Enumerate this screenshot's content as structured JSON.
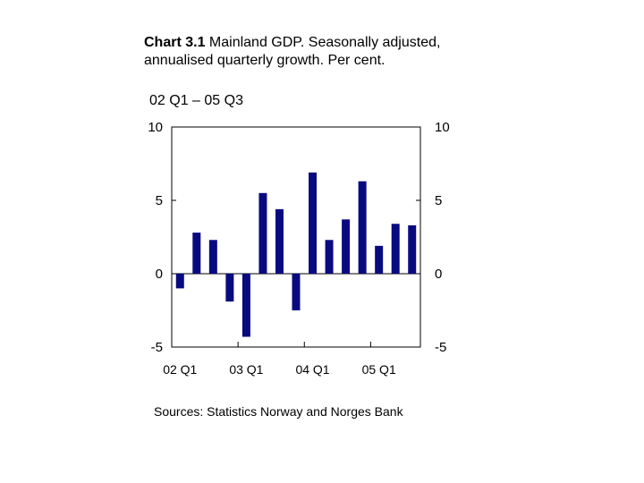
{
  "chart_data": {
    "type": "bar",
    "title_bold": "Chart 3.1",
    "title_rest": " Mainland GDP. Seasonally adjusted, annualised quarterly growth. Per cent.",
    "subtitle": "02 Q1 – 05 Q3",
    "source": "Sources: Statistics Norway and Norges Bank",
    "ylim": [
      -5,
      10
    ],
    "yticks": [
      "10",
      "5",
      "0",
      "-5"
    ],
    "ytick_values": [
      10,
      5,
      0,
      -5
    ],
    "xtick_labels": [
      "02 Q1",
      "03 Q1",
      "04 Q1",
      "05 Q1"
    ],
    "xtick_indices": [
      0,
      4,
      8,
      12
    ],
    "categories": [
      "02 Q1",
      "02 Q2",
      "02 Q3",
      "02 Q4",
      "03 Q1",
      "03 Q2",
      "03 Q3",
      "03 Q4",
      "04 Q1",
      "04 Q2",
      "04 Q3",
      "04 Q4",
      "05 Q1",
      "05 Q2",
      "05 Q3"
    ],
    "values": [
      -1.0,
      2.8,
      2.3,
      -1.9,
      -4.3,
      5.5,
      4.4,
      -2.5,
      6.9,
      2.3,
      3.7,
      6.3,
      1.9,
      3.4,
      3.3
    ],
    "bar_color": "#0a0a80"
  }
}
